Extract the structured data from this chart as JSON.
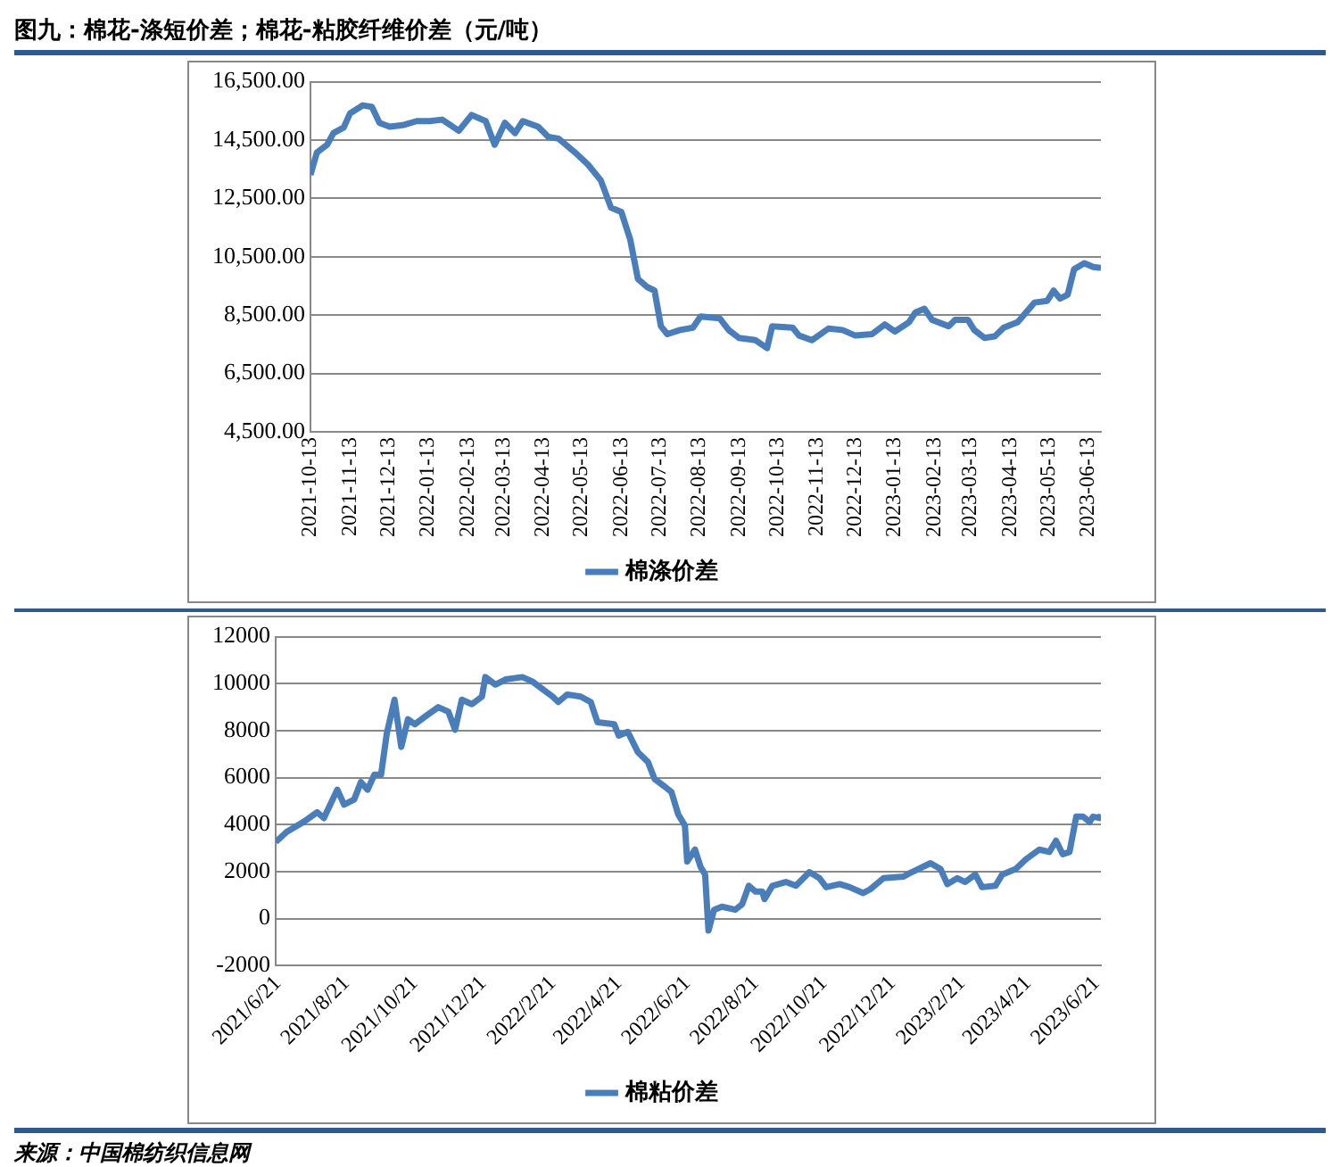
{
  "chart_data": [
    {
      "type": "line",
      "title": "图九：棉花-涤短价差；棉花-粘胶纤维价差（元/吨）",
      "xlim": [
        "2021-10-13",
        "2023-06-23"
      ],
      "xticks": [
        "2021-10-13",
        "2021-11-13",
        "2021-12-13",
        "2022-01-13",
        "2022-02-13",
        "2022-03-13",
        "2022-04-13",
        "2022-05-13",
        "2022-06-13",
        "2022-07-13",
        "2022-08-13",
        "2022-09-13",
        "2022-10-13",
        "2022-11-13",
        "2022-12-13",
        "2023-01-13",
        "2023-02-13",
        "2023-03-13",
        "2023-04-13",
        "2023-05-13",
        "2023-06-13"
      ],
      "ylim": [
        4500,
        16500
      ],
      "yticks": [
        {
          "value": 4500,
          "label": "4,500.00"
        },
        {
          "value": 6500,
          "label": "6,500.00"
        },
        {
          "value": 8500,
          "label": "8,500.00"
        },
        {
          "value": 10500,
          "label": "10,500.00"
        },
        {
          "value": 12500,
          "label": "12,500.00"
        },
        {
          "value": 14500,
          "label": "14,500.00"
        },
        {
          "value": 16500,
          "label": "16,500.00"
        }
      ],
      "grid": "y",
      "legend": "bottom",
      "marker": "none",
      "line_style": "solid",
      "series": [
        {
          "name": "棉涤价差",
          "color": "#4a7ebb",
          "x": [
            "2021-10-13",
            "2021-10-18",
            "2021-10-26",
            "2021-10-31",
            "2021-11-08",
            "2021-11-13",
            "2021-11-23",
            "2021-11-30",
            "2021-12-06",
            "2021-12-14",
            "2021-12-24",
            "2022-01-04",
            "2022-01-14",
            "2022-01-24",
            "2022-02-06",
            "2022-02-16",
            "2022-02-27",
            "2022-03-06",
            "2022-03-14",
            "2022-03-22",
            "2022-03-28",
            "2022-04-09",
            "2022-04-17",
            "2022-04-25",
            "2022-05-08",
            "2022-05-18",
            "2022-05-28",
            "2022-06-05",
            "2022-06-13",
            "2022-06-20",
            "2022-06-26",
            "2022-07-03",
            "2022-07-09",
            "2022-07-14",
            "2022-07-19",
            "2022-07-29",
            "2022-08-08",
            "2022-08-14",
            "2022-08-29",
            "2022-09-05",
            "2022-09-13",
            "2022-09-26",
            "2022-10-05",
            "2022-10-09",
            "2022-10-25",
            "2022-10-30",
            "2022-11-09",
            "2022-11-22",
            "2022-12-03",
            "2022-12-13",
            "2022-12-26",
            "2023-01-05",
            "2023-01-13",
            "2023-01-24",
            "2023-01-29",
            "2023-02-05",
            "2023-02-11",
            "2023-02-24",
            "2023-03-01",
            "2023-03-11",
            "2023-03-16",
            "2023-03-24",
            "2023-04-01",
            "2023-04-08",
            "2023-04-19",
            "2023-05-02",
            "2023-05-12",
            "2023-05-17",
            "2023-05-22",
            "2023-05-28",
            "2023-06-02",
            "2023-06-10",
            "2023-06-17",
            "2023-06-23"
          ],
          "values": [
            13310,
            14070,
            14340,
            14740,
            14930,
            15420,
            15690,
            15640,
            15090,
            14960,
            15010,
            15150,
            15150,
            15200,
            14820,
            15360,
            15150,
            14340,
            15090,
            14740,
            15150,
            14960,
            14610,
            14550,
            14070,
            13660,
            13120,
            12180,
            12040,
            11090,
            9740,
            9470,
            9340,
            8120,
            7850,
            7990,
            8070,
            8450,
            8390,
            7990,
            7720,
            7640,
            7370,
            8120,
            8070,
            7800,
            7640,
            8040,
            7990,
            7800,
            7850,
            8180,
            7940,
            8260,
            8590,
            8720,
            8340,
            8120,
            8340,
            8340,
            7990,
            7720,
            7770,
            8070,
            8260,
            8930,
            8990,
            9340,
            9070,
            9200,
            10070,
            10280,
            10150,
            10120
          ]
        }
      ]
    },
    {
      "type": "line",
      "xlim": [
        "2021-06-19",
        "2023-06-25"
      ],
      "xticks": [
        {
          "value": "2021-06-21",
          "label": "2021/6/21"
        },
        {
          "value": "2021-08-21",
          "label": "2021/8/21"
        },
        {
          "value": "2021-10-21",
          "label": "2021/10/21"
        },
        {
          "value": "2021-12-21",
          "label": "2021/12/21"
        },
        {
          "value": "2022-02-21",
          "label": "2022/2/21"
        },
        {
          "value": "2022-04-21",
          "label": "2022/4/21"
        },
        {
          "value": "2022-06-21",
          "label": "2022/6/21"
        },
        {
          "value": "2022-08-21",
          "label": "2022/8/21"
        },
        {
          "value": "2022-10-21",
          "label": "2022/10/21"
        },
        {
          "value": "2022-12-21",
          "label": "2022/12/21"
        },
        {
          "value": "2023-02-21",
          "label": "2023/2/21"
        },
        {
          "value": "2023-04-21",
          "label": "2023/4/21"
        },
        {
          "value": "2023-06-21",
          "label": "2023/6/21"
        }
      ],
      "ylim": [
        -2000,
        12000
      ],
      "yticks": [
        -2000,
        0,
        2000,
        4000,
        6000,
        8000,
        10000,
        12000
      ],
      "grid": "y",
      "legend": "bottom",
      "marker": "none",
      "line_style": "solid",
      "annotations": [
        "来源：中国棉纺织信息网"
      ],
      "series": [
        {
          "name": "棉粘价差",
          "color": "#4a7ebb",
          "x": [
            "2021-06-19",
            "2021-06-29",
            "2021-07-14",
            "2021-07-26",
            "2021-08-01",
            "2021-08-13",
            "2021-08-19",
            "2021-08-28",
            "2021-09-03",
            "2021-09-09",
            "2021-09-15",
            "2021-09-21",
            "2021-09-26",
            "2021-10-03",
            "2021-10-09",
            "2021-10-15",
            "2021-10-21",
            "2021-10-30",
            "2021-11-11",
            "2021-11-20",
            "2021-11-26",
            "2021-12-02",
            "2021-12-11",
            "2021-12-20",
            "2021-12-23",
            "2022-01-01",
            "2022-01-10",
            "2022-01-25",
            "2022-02-03",
            "2022-02-12",
            "2022-02-21",
            "2022-02-26",
            "2022-03-06",
            "2022-03-18",
            "2022-03-27",
            "2022-04-02",
            "2022-04-17",
            "2022-04-21",
            "2022-04-29",
            "2022-05-08",
            "2022-05-17",
            "2022-05-23",
            "2022-06-01",
            "2022-06-07",
            "2022-06-13",
            "2022-06-19",
            "2022-06-21",
            "2022-06-28",
            "2022-07-03",
            "2022-07-07",
            "2022-07-10",
            "2022-07-15",
            "2022-07-22",
            "2022-08-03",
            "2022-08-09",
            "2022-08-15",
            "2022-08-21",
            "2022-08-27",
            "2022-08-29",
            "2022-09-05",
            "2022-09-17",
            "2022-09-26",
            "2022-10-08",
            "2022-10-17",
            "2022-10-23",
            "2022-11-04",
            "2022-11-13",
            "2022-11-25",
            "2022-12-01",
            "2022-12-13",
            "2022-12-31",
            "2023-01-06",
            "2023-01-24",
            "2023-02-02",
            "2023-02-08",
            "2023-02-17",
            "2023-02-24",
            "2023-03-05",
            "2023-03-11",
            "2023-03-23",
            "2023-03-29",
            "2023-04-10",
            "2023-04-19",
            "2023-05-01",
            "2023-05-10",
            "2023-05-16",
            "2023-05-22",
            "2023-05-28",
            "2023-06-03",
            "2023-06-09",
            "2023-06-15",
            "2023-06-18",
            "2023-06-24",
            "2023-06-25"
          ],
          "values": [
            3260,
            3700,
            4120,
            4530,
            4280,
            5490,
            4850,
            5070,
            5810,
            5490,
            6130,
            6130,
            7850,
            9320,
            7310,
            8490,
            8270,
            8590,
            9000,
            8810,
            8040,
            9320,
            9130,
            9450,
            10280,
            9960,
            10180,
            10280,
            10090,
            9770,
            9450,
            9220,
            9540,
            9450,
            9220,
            8360,
            8270,
            7790,
            7950,
            7090,
            6670,
            5940,
            5620,
            5390,
            4440,
            3960,
            2430,
            2940,
            2200,
            1880,
            -510,
            380,
            510,
            380,
            610,
            1400,
            1150,
            1150,
            830,
            1400,
            1560,
            1400,
            1980,
            1720,
            1340,
            1470,
            1340,
            1090,
            1240,
            1720,
            1790,
            1950,
            2360,
            2110,
            1470,
            1720,
            1560,
            1880,
            1340,
            1400,
            1880,
            2110,
            2520,
            2940,
            2840,
            3320,
            2740,
            2840,
            4340,
            4340,
            4120,
            4340,
            4280,
            4440
          ]
        }
      ]
    }
  ]
}
